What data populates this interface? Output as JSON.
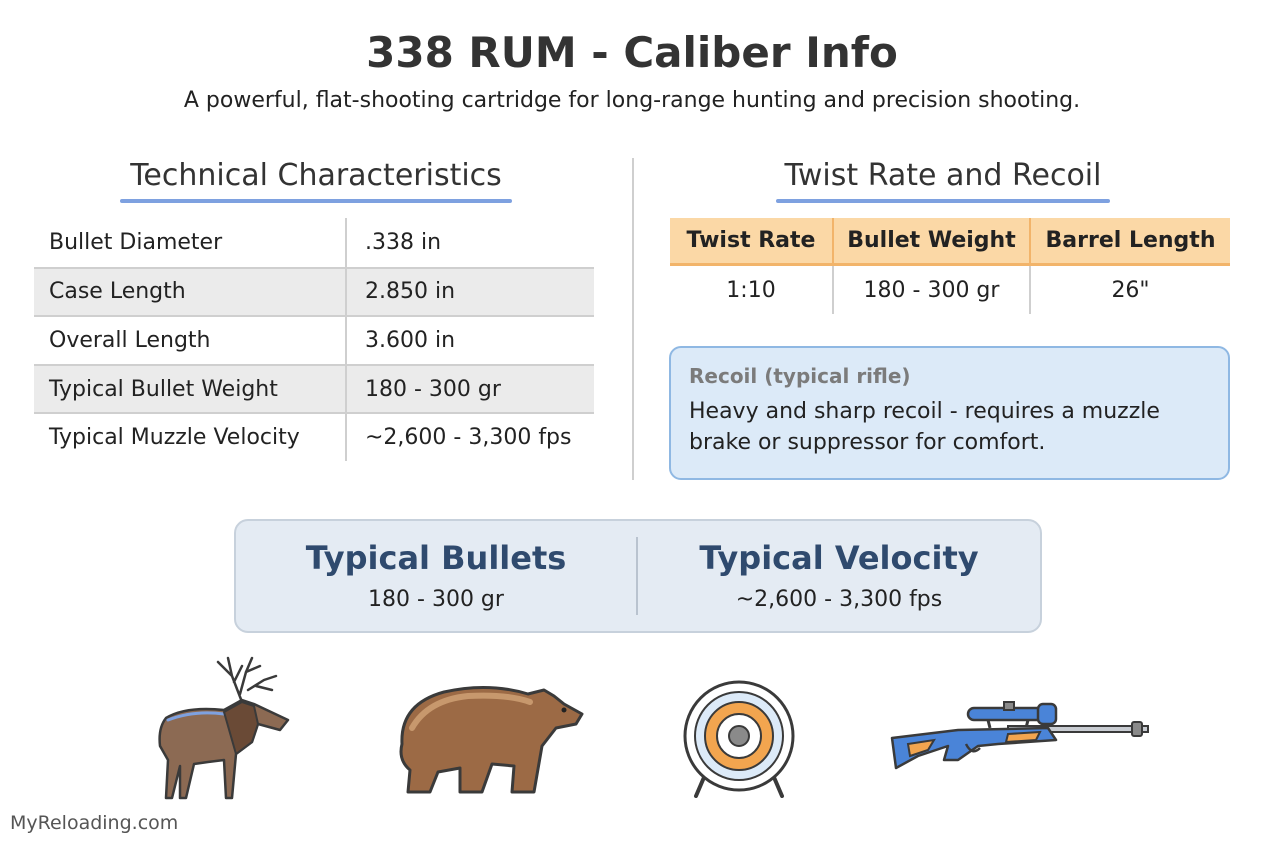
{
  "header": {
    "title": "338 RUM - Caliber Info",
    "subtitle": "A powerful, flat-shooting cartridge for long-range hunting and precision shooting."
  },
  "technical": {
    "heading": "Technical Characteristics",
    "rows": [
      {
        "label": "Bullet Diameter",
        "value": ".338 in"
      },
      {
        "label": "Case Length",
        "value": "2.850 in"
      },
      {
        "label": "Overall Length",
        "value": "3.600 in"
      },
      {
        "label": "Typical Bullet Weight",
        "value": "180 - 300 gr"
      },
      {
        "label": "Typical Muzzle Velocity",
        "value": "~2,600 - 3,300 fps"
      }
    ]
  },
  "twist": {
    "heading": "Twist Rate and Recoil",
    "columns": [
      "Twist Rate",
      "Bullet Weight",
      "Barrel Length"
    ],
    "values": [
      "1:10",
      "180 - 300 gr",
      "26\""
    ]
  },
  "recoil": {
    "label": "Recoil (typical rifle)",
    "text": "Heavy and sharp recoil - requires a muzzle brake or suppressor for comfort."
  },
  "summary": {
    "bullets_heading": "Typical Bullets",
    "bullets_value": "180 - 300 gr",
    "velocity_heading": "Typical Velocity",
    "velocity_value": "~2,600 - 3,300 fps"
  },
  "icons": [
    "elk-icon",
    "bear-icon",
    "target-icon",
    "rifle-icon"
  ],
  "colors": {
    "title": "#333333",
    "accent_underline": "#7ea1e0",
    "twist_header": "#fbd8a6",
    "recoil_box": "#dceaf8",
    "summary_heading": "#2f4a6e"
  },
  "footer": "MyReloading.com"
}
